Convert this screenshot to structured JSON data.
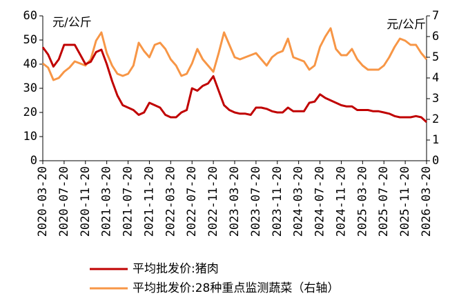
{
  "chart_data": {
    "type": "line",
    "y_label": "元/公斤",
    "y2_label": "元/公斤",
    "x": [
      "2020-03-20",
      "2020-04-20",
      "2020-05-20",
      "2020-06-20",
      "2020-07-20",
      "2020-08-20",
      "2020-09-20",
      "2020-10-20",
      "2020-11-20",
      "2020-12-20",
      "2021-01-20",
      "2021-02-20",
      "2021-03-20",
      "2021-04-20",
      "2021-05-20",
      "2021-06-20",
      "2021-07-20",
      "2021-08-20",
      "2021-09-20",
      "2021-10-20",
      "2021-11-20",
      "2021-12-20",
      "2022-01-20",
      "2022-02-20",
      "2022-03-20",
      "2022-04-20",
      "2022-05-20",
      "2022-06-20",
      "2022-07-20",
      "2022-08-20",
      "2022-09-20",
      "2022-10-20",
      "2022-11-20",
      "2022-12-20",
      "2023-01-20",
      "2023-02-20",
      "2023-03-20",
      "2023-04-20",
      "2023-05-20",
      "2023-06-20",
      "2023-07-20",
      "2023-08-20",
      "2023-09-20",
      "2023-10-20",
      "2023-11-20",
      "2023-12-20",
      "2024-01-20",
      "2024-02-20",
      "2024-03-20",
      "2024-04-20",
      "2024-05-20",
      "2024-06-20",
      "2024-07-20",
      "2024-08-20",
      "2024-09-20",
      "2024-10-20",
      "2024-11-20",
      "2024-12-20",
      "2025-01-20",
      "2025-02-20",
      "2025-03-20",
      "2025-04-20",
      "2025-05-20",
      "2025-06-20",
      "2025-07-20",
      "2025-08-20",
      "2025-09-20",
      "2025-10-20",
      "2025-11-20",
      "2025-12-20",
      "2026-01-20",
      "2026-02-20",
      "2026-03-20"
    ],
    "xlim": [
      "2020-03-20",
      "2026-03-20"
    ],
    "xticks": [
      "2020-03-20",
      "2020-07-20",
      "2020-11-20",
      "2021-03-20",
      "2021-07-20",
      "2021-11-20",
      "2022-03-20",
      "2022-07-20",
      "2022-11-20",
      "2023-03-20",
      "2023-07-20",
      "2023-11-20",
      "2024-03-20",
      "2024-07-20",
      "2024-11-20",
      "2025-03-20",
      "2025-07-20",
      "2025-11-20",
      "2026-03-20"
    ],
    "ylim": [
      0,
      60
    ],
    "yticks": [
      0,
      10,
      20,
      30,
      40,
      50,
      60
    ],
    "y2lim": [
      0,
      7
    ],
    "y2ticks": [
      0,
      1,
      2,
      3,
      4,
      5,
      6,
      7
    ],
    "series": [
      {
        "name": "平均批发价:猪肉",
        "color": "#c00000",
        "values": [
          47,
          44,
          39,
          42,
          48,
          48,
          48,
          44,
          40,
          41,
          45,
          46,
          40,
          33,
          27,
          23,
          22,
          21,
          19,
          20,
          24,
          23,
          22,
          19,
          18,
          18,
          20,
          21,
          30,
          29,
          31,
          32,
          35,
          29,
          23,
          21,
          20,
          19.5,
          19.5,
          19,
          22,
          22,
          21.5,
          20.5,
          20,
          20,
          22,
          20.5,
          20.5,
          20.5,
          24,
          24.5,
          27.5,
          26,
          25,
          24,
          23,
          22.5,
          22.5,
          21,
          21,
          21,
          20.5,
          20.5,
          20,
          19.5,
          18.5,
          18,
          18,
          18,
          18.5,
          18,
          16
        ]
      },
      {
        "name": "平均批发价:28种重点监测蔬菜（右轴）",
        "color": "#f79646",
        "axis": "y2",
        "values": [
          4.7,
          4.5,
          3.9,
          4.0,
          4.3,
          4.5,
          4.8,
          4.7,
          4.6,
          4.9,
          5.8,
          6.2,
          5.2,
          4.6,
          4.2,
          4.1,
          4.2,
          4.6,
          5.7,
          5.3,
          5.0,
          5.6,
          5.7,
          5.4,
          4.9,
          4.6,
          4.1,
          4.2,
          4.7,
          5.4,
          4.9,
          4.6,
          4.3,
          5.2,
          6.2,
          5.6,
          5.0,
          4.9,
          5.0,
          5.1,
          5.2,
          4.9,
          4.6,
          5.0,
          5.2,
          5.3,
          5.9,
          5.0,
          4.9,
          4.8,
          4.4,
          4.6,
          5.5,
          6.0,
          6.4,
          5.4,
          5.1,
          5.1,
          5.4,
          4.9,
          4.6,
          4.4,
          4.4,
          4.4,
          4.6,
          5.0,
          5.5,
          5.9,
          5.8,
          5.6,
          5.6,
          5.2,
          4.9
        ]
      }
    ]
  }
}
